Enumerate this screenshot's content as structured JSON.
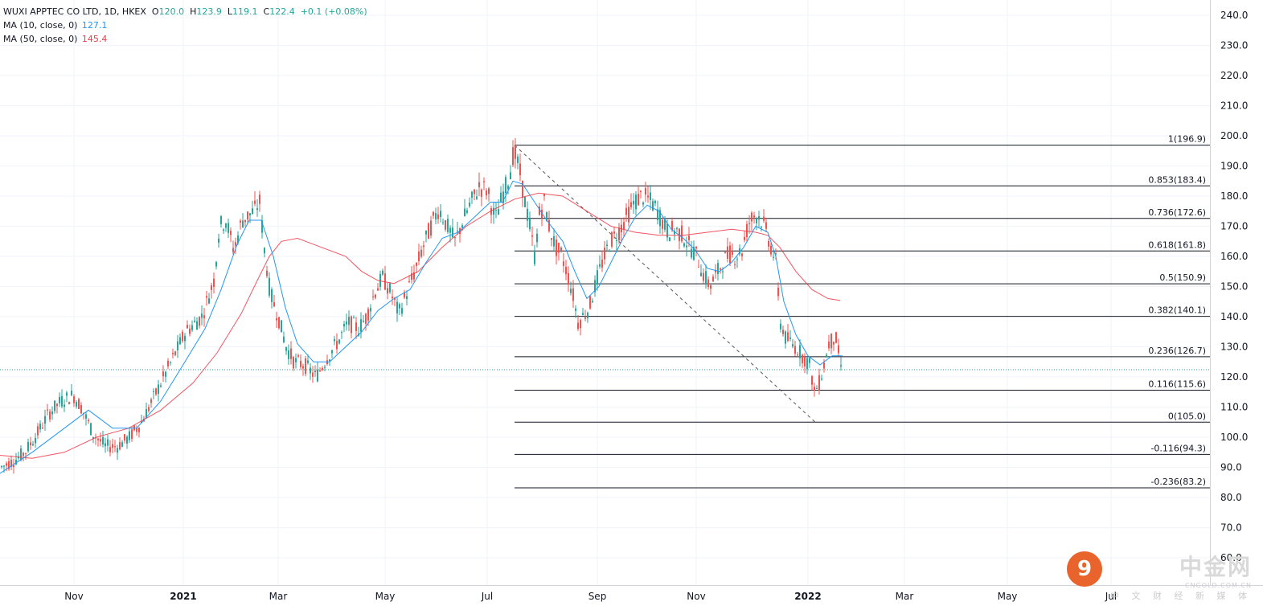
{
  "legend": {
    "title": "WUXI APPTEC CO LTD, 1D, HKEX",
    "o_label": "O",
    "o": "120.0",
    "h_label": "H",
    "h": "123.9",
    "l_label": "L",
    "l": "119.1",
    "c_label": "C",
    "c": "122.4",
    "change": "+0.1 (+0.08%)",
    "ma10_label": "MA (10, close, 0)",
    "ma10_value": "127.1",
    "ma50_label": "MA (50, close, 0)",
    "ma50_value": "145.4"
  },
  "colors": {
    "up": "#26a69a",
    "down": "#ef5350",
    "ma10": "#2196f3",
    "ma50": "#f23645",
    "fib": "#131722",
    "grid": "#f0f3fa"
  },
  "watermark": {
    "name": "中金网",
    "url": "CNGOLD.COM.CN",
    "subtitle": "中 文 财 经 新 媒 体",
    "logo": "9"
  },
  "chart_data": {
    "type": "candlestick",
    "title": "WUXI APPTEC CO LTD, 1D, HKEX",
    "ylim": [
      57,
      246
    ],
    "y_ticks": [
      "240.0",
      "230.0",
      "220.0",
      "210.0",
      "200.0",
      "190.0",
      "180.0",
      "170.0",
      "160.0",
      "150.0",
      "140.0",
      "130.0",
      "120.0",
      "110.0",
      "100.0",
      "90.0",
      "80.0",
      "70.0",
      "60.0"
    ],
    "x_ticks": [
      "Nov",
      "2021",
      "Mar",
      "May",
      "Jul",
      "Sep",
      "Nov",
      "2022",
      "Mar",
      "May",
      "Jul"
    ],
    "last_price": 122.4,
    "price_path": [
      [
        0,
        90
      ],
      [
        15,
        92
      ],
      [
        30,
        95
      ],
      [
        45,
        101
      ],
      [
        60,
        108
      ],
      [
        75,
        112
      ],
      [
        90,
        114
      ],
      [
        100,
        110
      ],
      [
        115,
        101
      ],
      [
        130,
        97
      ],
      [
        145,
        97
      ],
      [
        160,
        100
      ],
      [
        175,
        105
      ],
      [
        190,
        113
      ],
      [
        210,
        124
      ],
      [
        230,
        135
      ],
      [
        250,
        140
      ],
      [
        265,
        152
      ],
      [
        272,
        170
      ],
      [
        280,
        172
      ],
      [
        290,
        162
      ],
      [
        300,
        172
      ],
      [
        315,
        175
      ],
      [
        322,
        178
      ],
      [
        328,
        162
      ],
      [
        335,
        148
      ],
      [
        345,
        140
      ],
      [
        355,
        130
      ],
      [
        365,
        125
      ],
      [
        378,
        124
      ],
      [
        392,
        120
      ],
      [
        405,
        126
      ],
      [
        420,
        132
      ],
      [
        432,
        138
      ],
      [
        445,
        136
      ],
      [
        455,
        140
      ],
      [
        465,
        148
      ],
      [
        475,
        153
      ],
      [
        485,
        148
      ],
      [
        495,
        141
      ],
      [
        505,
        148
      ],
      [
        515,
        155
      ],
      [
        525,
        163
      ],
      [
        535,
        170
      ],
      [
        545,
        176
      ],
      [
        555,
        170
      ],
      [
        565,
        165
      ],
      [
        575,
        172
      ],
      [
        585,
        178
      ],
      [
        595,
        183
      ],
      [
        605,
        182
      ],
      [
        615,
        172
      ],
      [
        625,
        181
      ],
      [
        632,
        186
      ],
      [
        638,
        195
      ],
      [
        645,
        189
      ],
      [
        652,
        178
      ],
      [
        658,
        170
      ],
      [
        664,
        160
      ],
      [
        670,
        174
      ],
      [
        676,
        178
      ],
      [
        682,
        170
      ],
      [
        690,
        163
      ],
      [
        698,
        160
      ],
      [
        705,
        154
      ],
      [
        712,
        147
      ],
      [
        718,
        138
      ],
      [
        724,
        140
      ],
      [
        732,
        143
      ],
      [
        740,
        151
      ],
      [
        748,
        158
      ],
      [
        758,
        165
      ],
      [
        768,
        168
      ],
      [
        778,
        173
      ],
      [
        788,
        178
      ],
      [
        797,
        180
      ],
      [
        806,
        179
      ],
      [
        815,
        176
      ],
      [
        822,
        172
      ],
      [
        830,
        168
      ],
      [
        838,
        169
      ],
      [
        848,
        167
      ],
      [
        858,
        163
      ],
      [
        866,
        160
      ],
      [
        874,
        154
      ],
      [
        882,
        150
      ],
      [
        890,
        154
      ],
      [
        898,
        158
      ],
      [
        906,
        161
      ],
      [
        914,
        160
      ],
      [
        922,
        162
      ],
      [
        930,
        171
      ],
      [
        938,
        174
      ],
      [
        944,
        173
      ],
      [
        950,
        170
      ],
      [
        958,
        163
      ],
      [
        964,
        158
      ],
      [
        970,
        138
      ],
      [
        976,
        133
      ],
      [
        984,
        131
      ],
      [
        992,
        129
      ],
      [
        1000,
        126
      ],
      [
        1006,
        124
      ],
      [
        1012,
        115
      ],
      [
        1018,
        118
      ],
      [
        1024,
        124
      ],
      [
        1030,
        131
      ],
      [
        1036,
        133
      ],
      [
        1040,
        132
      ],
      [
        1044,
        124
      ],
      [
        1048,
        122
      ]
    ],
    "ma10_path": [
      [
        0,
        88
      ],
      [
        40,
        95
      ],
      [
        80,
        103
      ],
      [
        110,
        109
      ],
      [
        140,
        103
      ],
      [
        170,
        103
      ],
      [
        200,
        112
      ],
      [
        230,
        125
      ],
      [
        255,
        136
      ],
      [
        275,
        149
      ],
      [
        295,
        164
      ],
      [
        310,
        172
      ],
      [
        325,
        172
      ],
      [
        340,
        160
      ],
      [
        355,
        143
      ],
      [
        370,
        131
      ],
      [
        390,
        125
      ],
      [
        410,
        125
      ],
      [
        430,
        130
      ],
      [
        450,
        135
      ],
      [
        470,
        142
      ],
      [
        490,
        146
      ],
      [
        510,
        149
      ],
      [
        530,
        158
      ],
      [
        550,
        166
      ],
      [
        570,
        168
      ],
      [
        590,
        173
      ],
      [
        610,
        178
      ],
      [
        625,
        178
      ],
      [
        638,
        185
      ],
      [
        650,
        184
      ],
      [
        665,
        178
      ],
      [
        680,
        172
      ],
      [
        700,
        165
      ],
      [
        715,
        155
      ],
      [
        730,
        146
      ],
      [
        745,
        150
      ],
      [
        760,
        158
      ],
      [
        775,
        166
      ],
      [
        790,
        173
      ],
      [
        805,
        177
      ],
      [
        820,
        175
      ],
      [
        835,
        169
      ],
      [
        850,
        166
      ],
      [
        865,
        162
      ],
      [
        880,
        156
      ],
      [
        895,
        155
      ],
      [
        910,
        158
      ],
      [
        925,
        163
      ],
      [
        940,
        170
      ],
      [
        955,
        168
      ],
      [
        965,
        160
      ],
      [
        975,
        145
      ],
      [
        990,
        134
      ],
      [
        1005,
        127
      ],
      [
        1020,
        124
      ],
      [
        1035,
        127
      ],
      [
        1048,
        127
      ]
    ],
    "ma50_path": [
      [
        0,
        94
      ],
      [
        40,
        93
      ],
      [
        80,
        95
      ],
      [
        120,
        100
      ],
      [
        160,
        103
      ],
      [
        200,
        109
      ],
      [
        240,
        118
      ],
      [
        270,
        128
      ],
      [
        300,
        141
      ],
      [
        320,
        152
      ],
      [
        335,
        160
      ],
      [
        350,
        165
      ],
      [
        370,
        166
      ],
      [
        400,
        163
      ],
      [
        430,
        160
      ],
      [
        450,
        155
      ],
      [
        470,
        152
      ],
      [
        490,
        151
      ],
      [
        520,
        155
      ],
      [
        550,
        163
      ],
      [
        580,
        170
      ],
      [
        610,
        175
      ],
      [
        640,
        179
      ],
      [
        670,
        181
      ],
      [
        700,
        180
      ],
      [
        730,
        175
      ],
      [
        760,
        170
      ],
      [
        790,
        168
      ],
      [
        820,
        167
      ],
      [
        850,
        167
      ],
      [
        880,
        168
      ],
      [
        910,
        169
      ],
      [
        940,
        168
      ],
      [
        955,
        167
      ],
      [
        970,
        163
      ],
      [
        990,
        155
      ],
      [
        1010,
        149
      ],
      [
        1030,
        146
      ],
      [
        1045,
        145.4
      ]
    ],
    "trendline": {
      "from": [
        640,
        196.9
      ],
      "to": [
        1014,
        105.0
      ]
    },
    "fibonacci": {
      "x_range": [
        640,
        1505
      ],
      "levels": [
        {
          "ratio": 1,
          "price": 196.9,
          "label": "1(196.9)"
        },
        {
          "ratio": 0.853,
          "price": 183.4,
          "label": "0.853(183.4)"
        },
        {
          "ratio": 0.736,
          "price": 172.6,
          "label": "0.736(172.6)"
        },
        {
          "ratio": 0.618,
          "price": 161.8,
          "label": "0.618(161.8)"
        },
        {
          "ratio": 0.5,
          "price": 150.9,
          "label": "0.5(150.9)"
        },
        {
          "ratio": 0.382,
          "price": 140.1,
          "label": "0.382(140.1)"
        },
        {
          "ratio": 0.236,
          "price": 126.7,
          "label": "0.236(126.7)"
        },
        {
          "ratio": 0.116,
          "price": 115.6,
          "label": "0.116(115.6)"
        },
        {
          "ratio": 0,
          "price": 105.0,
          "label": "0(105.0)"
        },
        {
          "ratio": -0.116,
          "price": 94.3,
          "label": "-0.116(94.3)"
        },
        {
          "ratio": -0.236,
          "price": 83.2,
          "label": "-0.236(83.2)"
        }
      ]
    }
  }
}
